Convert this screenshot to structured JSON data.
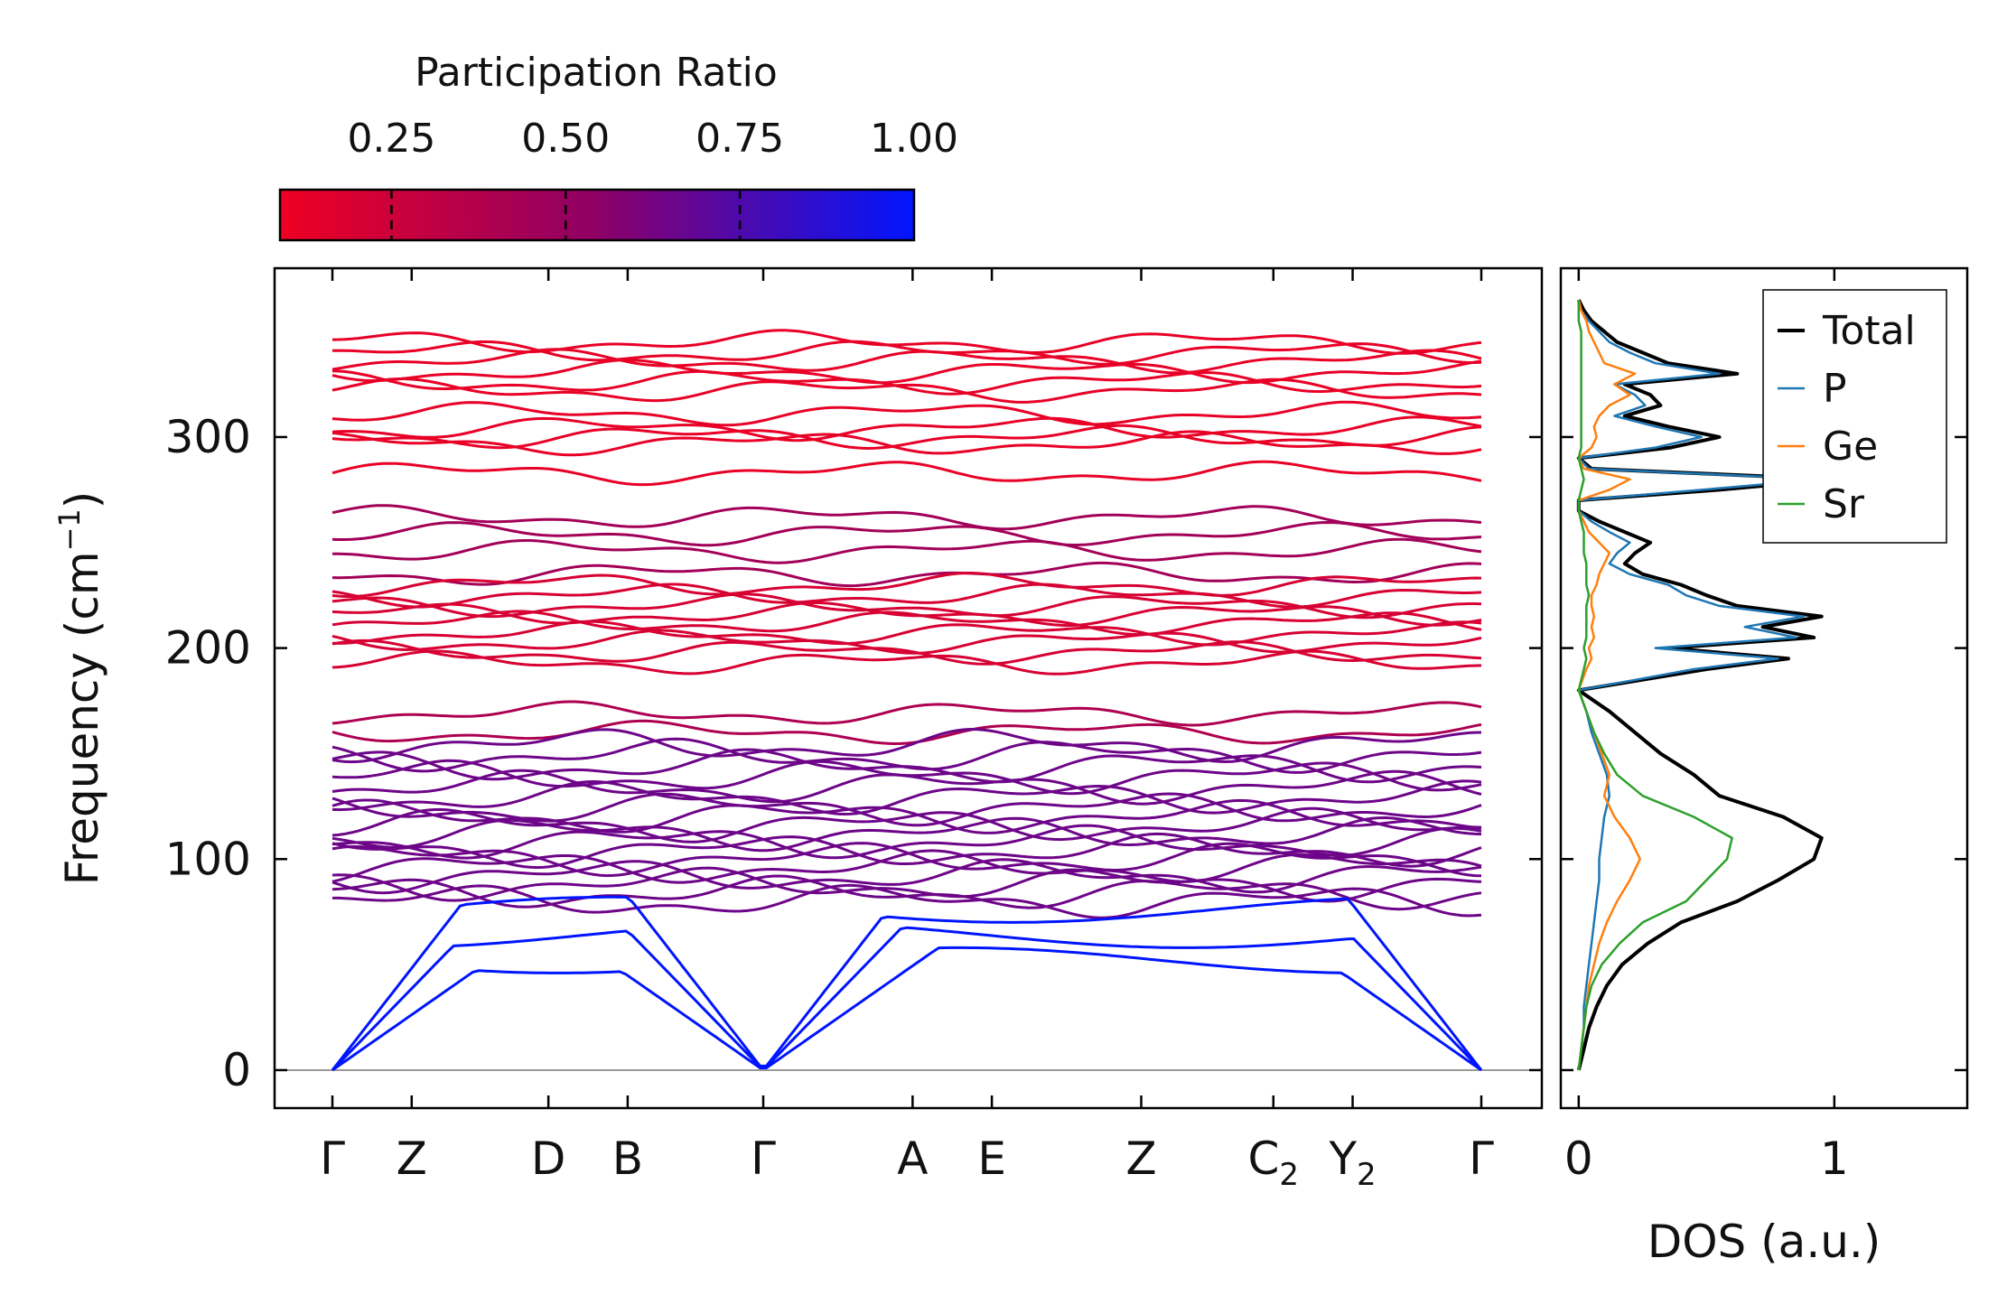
{
  "colorbar": {
    "title": "Participation Ratio",
    "ticks": [
      0.25,
      0.5,
      0.75,
      1.0
    ],
    "tick_labels": [
      "0.25",
      "0.50",
      "0.75",
      "1.00"
    ],
    "range": [
      0.09,
      1.0
    ],
    "color_low": "#ee0022",
    "color_mid": "#8e0066",
    "color_high": "#0015ff"
  },
  "chart_data": [
    {
      "type": "line",
      "name": "phonon-band-structure",
      "title": "",
      "xlabel": "",
      "ylabel": "Frequency (cm",
      "ylabel_sup": "−1",
      "ylabel_tail": ")",
      "ylim": [
        -18,
        380
      ],
      "yticks": [
        0,
        100,
        200,
        300
      ],
      "ytick_labels": [
        "0",
        "100",
        "200",
        "300"
      ],
      "kpath_labels": [
        {
          "base": "Γ",
          "sub": ""
        },
        {
          "base": "Z",
          "sub": ""
        },
        {
          "base": "D",
          "sub": ""
        },
        {
          "base": "B",
          "sub": ""
        },
        {
          "base": "Γ",
          "sub": ""
        },
        {
          "base": "A",
          "sub": ""
        },
        {
          "base": "E",
          "sub": ""
        },
        {
          "base": "Z",
          "sub": ""
        },
        {
          "base": "C",
          "sub": "2"
        },
        {
          "base": "Y",
          "sub": "2"
        },
        {
          "base": "Γ",
          "sub": ""
        }
      ],
      "kpath_positions": [
        0,
        0.069,
        0.188,
        0.257,
        0.375,
        0.505,
        0.574,
        0.704,
        0.819,
        0.888,
        1.0
      ],
      "zero_line": 0,
      "band_groups": [
        {
          "name": "high-optical",
          "frequencies": [
            283,
            297,
            300,
            304,
            311,
            322,
            326,
            331,
            336,
            340,
            345
          ],
          "participation": 0.12
        },
        {
          "name": "mid-upper",
          "frequencies": [
            235,
            246,
            254,
            262
          ],
          "participation": 0.45
        },
        {
          "name": "mid-optical",
          "frequencies": [
            193,
            198,
            203,
            207,
            212,
            216,
            220,
            225,
            230
          ],
          "participation": 0.2
        },
        {
          "name": "low-optical-top",
          "frequencies": [
            160,
            169
          ],
          "participation": 0.4
        },
        {
          "name": "low-optical",
          "frequencies": [
            80,
            84,
            88,
            92,
            96,
            100,
            104,
            108,
            112,
            116,
            120,
            124,
            129,
            134,
            139,
            144,
            149,
            154
          ],
          "participation": 0.65
        },
        {
          "name": "acoustic",
          "frequencies": [
            0,
            0,
            0
          ],
          "participation": 1.0
        }
      ]
    },
    {
      "type": "line",
      "name": "phonon-dos",
      "title": "",
      "xlabel": "DOS (a.u.)",
      "ylabel": "",
      "xlim": [
        -0.07,
        1.52
      ],
      "ylim": [
        -18,
        380
      ],
      "xticks": [
        0,
        1
      ],
      "xtick_labels": [
        "0",
        "1"
      ],
      "frequency": [
        0,
        10,
        20,
        30,
        40,
        50,
        60,
        70,
        80,
        90,
        100,
        110,
        120,
        130,
        140,
        150,
        160,
        170,
        180,
        190,
        195,
        200,
        205,
        210,
        215,
        220,
        225,
        230,
        235,
        240,
        245,
        250,
        255,
        260,
        265,
        270,
        275,
        280,
        285,
        290,
        295,
        300,
        305,
        310,
        315,
        320,
        325,
        330,
        335,
        340,
        345,
        350,
        355,
        360,
        365
      ],
      "series": [
        {
          "name": "Total",
          "color": "#000000",
          "values": [
            0.0,
            0.02,
            0.04,
            0.07,
            0.11,
            0.17,
            0.27,
            0.4,
            0.62,
            0.78,
            0.92,
            0.95,
            0.8,
            0.55,
            0.45,
            0.32,
            0.22,
            0.12,
            0.0,
            0.5,
            0.82,
            0.35,
            0.92,
            0.72,
            0.95,
            0.62,
            0.5,
            0.4,
            0.25,
            0.18,
            0.22,
            0.28,
            0.18,
            0.08,
            0.0,
            0.0,
            0.55,
            1.0,
            0.05,
            0.0,
            0.36,
            0.55,
            0.35,
            0.18,
            0.32,
            0.28,
            0.18,
            0.62,
            0.35,
            0.25,
            0.15,
            0.1,
            0.05,
            0.02,
            0.0
          ]
        },
        {
          "name": "P",
          "color": "#1f77b4",
          "values": [
            0.0,
            0.01,
            0.02,
            0.02,
            0.03,
            0.04,
            0.05,
            0.06,
            0.07,
            0.08,
            0.08,
            0.09,
            0.1,
            0.12,
            0.11,
            0.08,
            0.05,
            0.03,
            0.0,
            0.45,
            0.78,
            0.3,
            0.85,
            0.65,
            0.88,
            0.55,
            0.42,
            0.35,
            0.2,
            0.12,
            0.15,
            0.2,
            0.12,
            0.05,
            0.0,
            0.0,
            0.48,
            0.95,
            0.04,
            0.0,
            0.3,
            0.48,
            0.3,
            0.14,
            0.26,
            0.22,
            0.14,
            0.55,
            0.3,
            0.2,
            0.12,
            0.08,
            0.04,
            0.01,
            0.0
          ]
        },
        {
          "name": "Ge",
          "color": "#ff7f0e",
          "values": [
            0.0,
            0.01,
            0.02,
            0.03,
            0.04,
            0.06,
            0.08,
            0.11,
            0.15,
            0.2,
            0.24,
            0.2,
            0.14,
            0.1,
            0.12,
            0.09,
            0.06,
            0.03,
            0.0,
            0.03,
            0.05,
            0.04,
            0.06,
            0.05,
            0.06,
            0.05,
            0.05,
            0.07,
            0.08,
            0.1,
            0.12,
            0.08,
            0.04,
            0.02,
            0.0,
            0.0,
            0.12,
            0.2,
            0.02,
            0.0,
            0.05,
            0.07,
            0.06,
            0.08,
            0.12,
            0.2,
            0.14,
            0.22,
            0.1,
            0.08,
            0.06,
            0.04,
            0.03,
            0.01,
            0.0
          ]
        },
        {
          "name": "Sr",
          "color": "#2ca02c",
          "values": [
            0.0,
            0.01,
            0.02,
            0.03,
            0.05,
            0.09,
            0.16,
            0.25,
            0.42,
            0.5,
            0.58,
            0.6,
            0.45,
            0.25,
            0.15,
            0.1,
            0.06,
            0.03,
            0.0,
            0.02,
            0.03,
            0.02,
            0.03,
            0.03,
            0.03,
            0.03,
            0.04,
            0.03,
            0.03,
            0.03,
            0.02,
            0.02,
            0.02,
            0.01,
            0.0,
            0.0,
            0.01,
            0.02,
            0.01,
            0.0,
            0.01,
            0.01,
            0.01,
            0.01,
            0.01,
            0.01,
            0.01,
            0.01,
            0.01,
            0.01,
            0.01,
            0.01,
            0.0,
            0.0,
            0.0
          ]
        }
      ],
      "legend_position": "top-right"
    }
  ]
}
